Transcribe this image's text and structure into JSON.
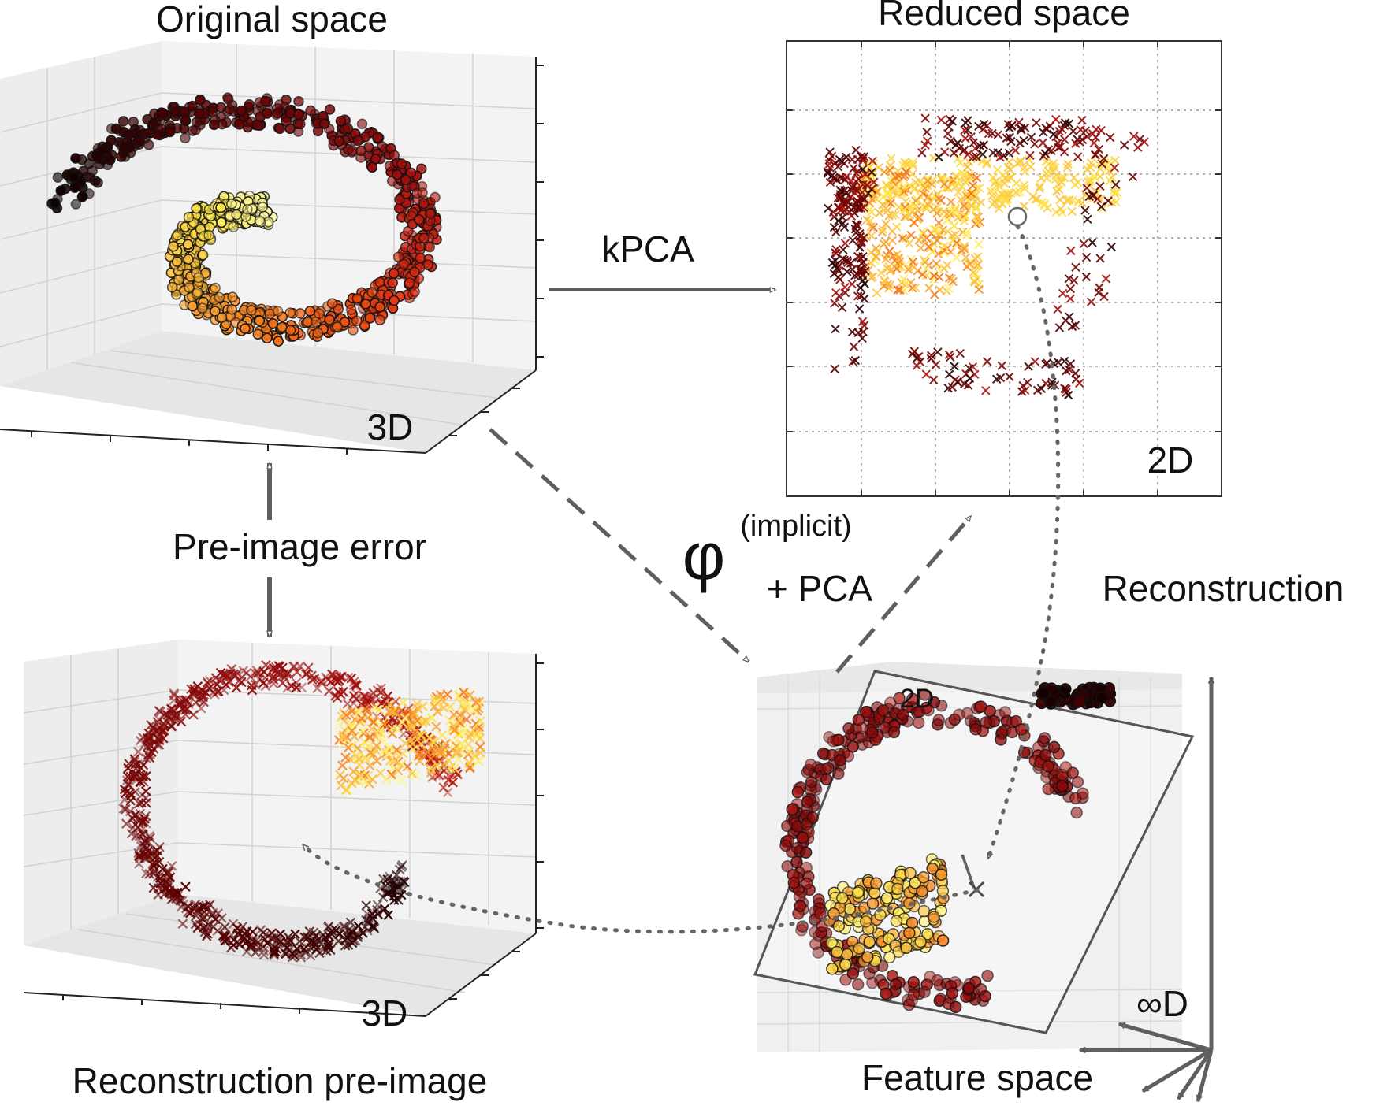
{
  "titles": {
    "original": "Original space",
    "reduced": "Reduced space",
    "reconstruction_preimage": "Reconstruction pre-image",
    "feature": "Feature space"
  },
  "dim_labels": {
    "original": "3D",
    "reduced": "2D",
    "reconstruction": "3D",
    "feature_plane": "2D",
    "feature_infinite": "∞D"
  },
  "arrows": {
    "kpca": "kPCA",
    "phi": "φ",
    "implicit": "(implicit)",
    "plus_pca": "+ PCA",
    "reconstruction": "Reconstruction",
    "preimage_error": "Pre-image error"
  },
  "colors": {
    "arrow": "#5f5f5f",
    "grid": "#cfcfcf",
    "pane": "#ececec",
    "colormap": [
      "#000000",
      "#5a0000",
      "#9c0d0d",
      "#dd2a10",
      "#f5721b",
      "#f9b53c",
      "#ffe94a",
      "#ffffc8"
    ]
  },
  "icons": {
    "point_marker": "circle-marker-icon",
    "reconstructed_marker": "cross-marker-icon",
    "arrowhead": "arrowhead-icon"
  }
}
